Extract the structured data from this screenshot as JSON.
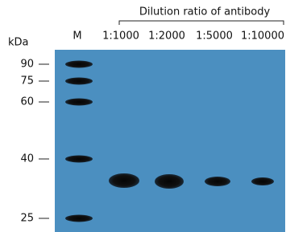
{
  "header": {
    "title": "Dilution ratio of antibody"
  },
  "lanes": [
    "M",
    "1:1000",
    "1:2000",
    "1:5000",
    "1:10000"
  ],
  "unit": "kDa",
  "markers": [
    90,
    75,
    60,
    40,
    25
  ]
}
